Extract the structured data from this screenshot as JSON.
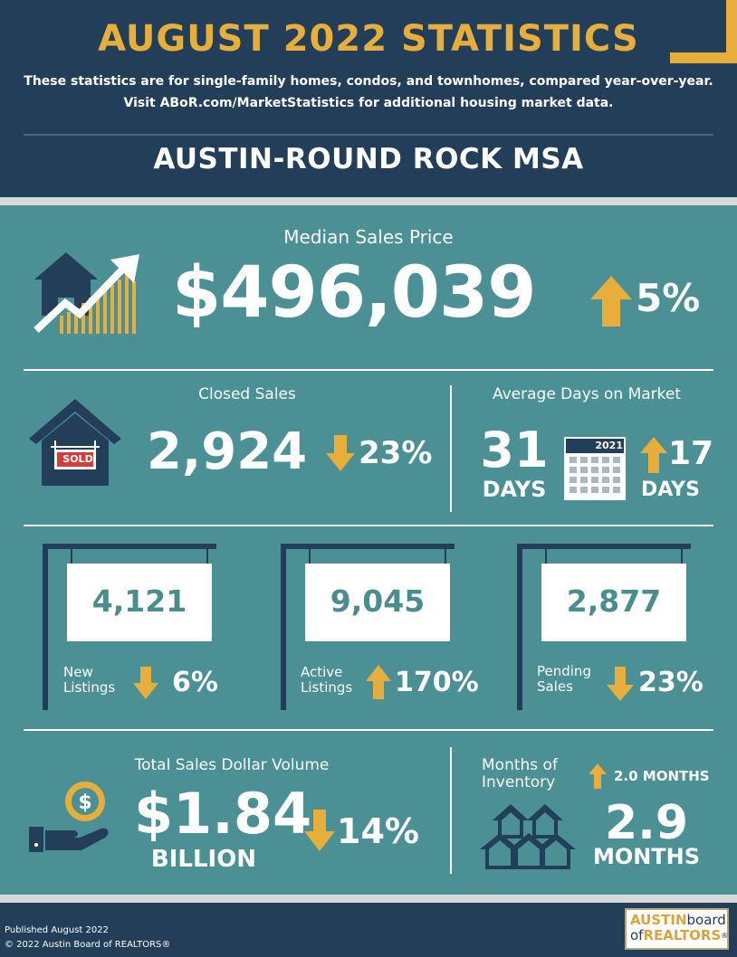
{
  "header": {
    "title": "AUGUST 2022 STATISTICS",
    "subtitle_line1": "These statistics are for single-family homes, condos, and townhomes, compared year-over-year.",
    "subtitle_line2": "Visit ABoR.com/MarketStatistics for additional housing market data.",
    "region": "AUSTIN-ROUND ROCK MSA"
  },
  "median_price": {
    "label": "Median Sales Price",
    "value": "$496,039",
    "change": "5%",
    "direction": "up"
  },
  "closed_sales": {
    "label": "Closed Sales",
    "value": "2,924",
    "change": "23%",
    "direction": "down",
    "sign_text": "SOLD"
  },
  "days_on_market": {
    "label": "Average Days on Market",
    "value": "31",
    "unit": "DAYS",
    "calendar_year": "2021",
    "change": "17",
    "change_unit": "DAYS",
    "direction": "up"
  },
  "listings": [
    {
      "value": "4,121",
      "label_line1": "New",
      "label_line2": "Listings",
      "change": "6%",
      "direction": "down"
    },
    {
      "value": "9,045",
      "label_line1": "Active",
      "label_line2": "Listings",
      "change": "170%",
      "direction": "up"
    },
    {
      "value": "2,877",
      "label_line1": "Pending",
      "label_line2": "Sales",
      "change": "23%",
      "direction": "down"
    }
  ],
  "dollar_volume": {
    "label": "Total Sales Dollar Volume",
    "value": "$1.84",
    "unit": "BILLION",
    "change": "14%",
    "direction": "down"
  },
  "inventory": {
    "label_line1": "Months of",
    "label_line2": "Inventory",
    "change": "2.0 MONTHS",
    "direction": "up",
    "value": "2.9",
    "unit": "MONTHS"
  },
  "footer": {
    "published": "Published August 2022",
    "copyright": "© 2022 Austin Board of REALTORS®",
    "logo_line1_a": "AUSTIN",
    "logo_line1_b": "board",
    "logo_line2_a": "of",
    "logo_line2_b": "REALTORS",
    "logo_reg": "®"
  },
  "colors": {
    "navy": "#223e58",
    "teal": "#4a9094",
    "gold": "#e7ae3c",
    "light_gray": "#d7d9d9"
  }
}
